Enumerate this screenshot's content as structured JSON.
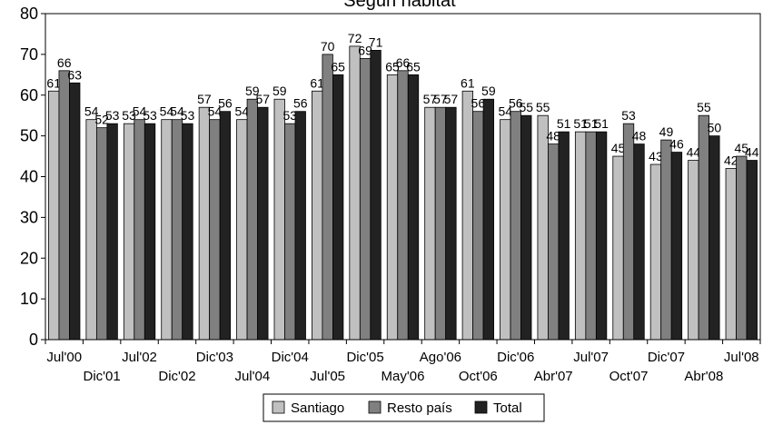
{
  "chart_data": {
    "type": "bar",
    "title": "Según hábitat",
    "categories": [
      "Jul'00",
      "Dic'01",
      "Jul'02",
      "Dic'02",
      "Dic'03",
      "Jul'04",
      "Dic'04",
      "Jul'05",
      "Dic'05",
      "May'06",
      "Ago'06",
      "Oct'06",
      "Dic'06",
      "Abr'07",
      "Jul'07",
      "Oct'07",
      "Dic'07",
      "Abr'08",
      "Jul'08"
    ],
    "series": [
      {
        "name": "Santiago",
        "color": "#c0c0c0",
        "values": [
          61,
          54,
          53,
          54,
          57,
          54,
          59,
          61,
          72,
          65,
          57,
          61,
          54,
          55,
          51,
          45,
          43,
          44,
          42
        ]
      },
      {
        "name": "Resto país",
        "color": "#808080",
        "values": [
          66,
          52,
          54,
          54,
          54,
          59,
          53,
          70,
          69,
          66,
          57,
          56,
          56,
          48,
          51,
          53,
          49,
          55,
          45
        ]
      },
      {
        "name": "Total",
        "color": "#222222",
        "values": [
          63,
          53,
          53,
          53,
          56,
          57,
          56,
          65,
          71,
          65,
          57,
          59,
          55,
          51,
          51,
          48,
          46,
          50,
          44
        ]
      }
    ],
    "ylim": [
      0,
      80
    ],
    "yticks": [
      0,
      10,
      20,
      30,
      40,
      50,
      60,
      70,
      80
    ],
    "legend_position": "bottom-center"
  }
}
